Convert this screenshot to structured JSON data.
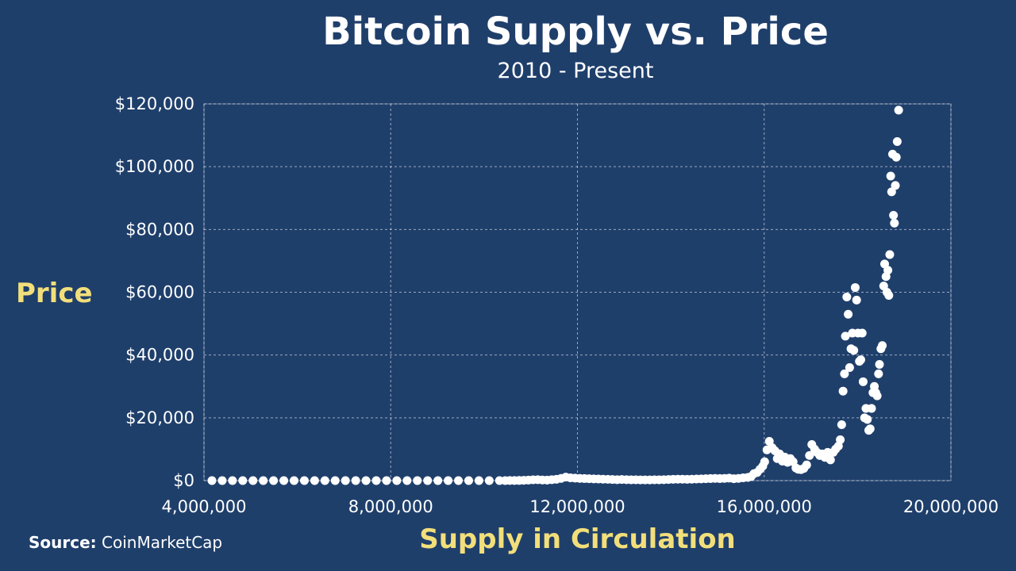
{
  "chart_data": {
    "type": "scatter",
    "title": "Bitcoin Supply vs. Price",
    "subtitle": "2010 - Present",
    "xlabel": "Supply in Circulation",
    "ylabel": "Price",
    "xlim": [
      4000000,
      20000000
    ],
    "ylim": [
      0,
      120000
    ],
    "xticks": [
      4000000,
      8000000,
      12000000,
      16000000,
      20000000
    ],
    "xtick_labels": [
      "4,000,000",
      "8,000,000",
      "12,000,000",
      "16,000,000",
      "20,000,000"
    ],
    "yticks": [
      0,
      20000,
      40000,
      60000,
      80000,
      100000,
      120000
    ],
    "ytick_labels": [
      "$0",
      "$20,000",
      "$40,000",
      "$60,000",
      "$80,000",
      "$100,000",
      "$120,000"
    ],
    "grid": true,
    "point_color": "#ffffff",
    "series": [
      {
        "points": [
          [
            4170000,
            0
          ],
          [
            4390000,
            0
          ],
          [
            4610000,
            0
          ],
          [
            4830000,
            0
          ],
          [
            5050000,
            0
          ],
          [
            5270000,
            0
          ],
          [
            5490000,
            0
          ],
          [
            5710000,
            0
          ],
          [
            5930000,
            0
          ],
          [
            6150000,
            0
          ],
          [
            6370000,
            0
          ],
          [
            6590000,
            0
          ],
          [
            6810000,
            0
          ],
          [
            7030000,
            0
          ],
          [
            7250000,
            0
          ],
          [
            7470000,
            0
          ],
          [
            7690000,
            0
          ],
          [
            7910000,
            0
          ],
          [
            8130000,
            0
          ],
          [
            8350000,
            0
          ],
          [
            8570000,
            0
          ],
          [
            8790000,
            0
          ],
          [
            9010000,
            0
          ],
          [
            9230000,
            0
          ],
          [
            9450000,
            0
          ],
          [
            9670000,
            0
          ],
          [
            9890000,
            0
          ],
          [
            10110000,
            0
          ],
          [
            10330000,
            0
          ],
          [
            10450000,
            10
          ],
          [
            10550000,
            20
          ],
          [
            10650000,
            30
          ],
          [
            10750000,
            50
          ],
          [
            10850000,
            100
          ],
          [
            10950000,
            150
          ],
          [
            11050000,
            250
          ],
          [
            11150000,
            300
          ],
          [
            11250000,
            200
          ],
          [
            11350000,
            150
          ],
          [
            11450000,
            300
          ],
          [
            11550000,
            400
          ],
          [
            11650000,
            700
          ],
          [
            11750000,
            1100
          ],
          [
            11850000,
            900
          ],
          [
            11950000,
            800
          ],
          [
            12050000,
            700
          ],
          [
            12150000,
            650
          ],
          [
            12250000,
            600
          ],
          [
            12350000,
            550
          ],
          [
            12450000,
            500
          ],
          [
            12550000,
            450
          ],
          [
            12650000,
            400
          ],
          [
            12750000,
            350
          ],
          [
            12850000,
            300
          ],
          [
            12950000,
            350
          ],
          [
            13050000,
            300
          ],
          [
            13150000,
            250
          ],
          [
            13250000,
            250
          ],
          [
            13350000,
            230
          ],
          [
            13450000,
            230
          ],
          [
            13550000,
            230
          ],
          [
            13650000,
            250
          ],
          [
            13750000,
            260
          ],
          [
            13850000,
            300
          ],
          [
            13950000,
            350
          ],
          [
            14050000,
            420
          ],
          [
            14150000,
            450
          ],
          [
            14250000,
            430
          ],
          [
            14350000,
            420
          ],
          [
            14450000,
            450
          ],
          [
            14550000,
            500
          ],
          [
            14650000,
            550
          ],
          [
            14750000,
            600
          ],
          [
            14850000,
            650
          ],
          [
            14950000,
            700
          ],
          [
            15050000,
            650
          ],
          [
            15150000,
            700
          ],
          [
            15250000,
            800
          ],
          [
            15350000,
            600
          ],
          [
            15450000,
            700
          ],
          [
            15550000,
            900
          ],
          [
            15650000,
            1000
          ],
          [
            15720000,
            1300
          ],
          [
            15780000,
            2200
          ],
          [
            15850000,
            2600
          ],
          [
            15910000,
            3600
          ],
          [
            15970000,
            4600
          ],
          [
            16010000,
            6000
          ],
          [
            16060000,
            9800
          ],
          [
            16110000,
            12500
          ],
          [
            16170000,
            10500
          ],
          [
            16230000,
            9500
          ],
          [
            16280000,
            7000
          ],
          [
            16330000,
            8500
          ],
          [
            16390000,
            6200
          ],
          [
            16440000,
            7500
          ],
          [
            16500000,
            5800
          ],
          [
            16560000,
            7000
          ],
          [
            16620000,
            6000
          ],
          [
            16680000,
            4000
          ],
          [
            16730000,
            3600
          ],
          [
            16790000,
            3500
          ],
          [
            16850000,
            3900
          ],
          [
            16910000,
            5000
          ],
          [
            16970000,
            8000
          ],
          [
            17020000,
            11500
          ],
          [
            17080000,
            10000
          ],
          [
            17130000,
            9000
          ],
          [
            17190000,
            8000
          ],
          [
            17240000,
            8500
          ],
          [
            17300000,
            7400
          ],
          [
            17360000,
            9000
          ],
          [
            17420000,
            6600
          ],
          [
            17480000,
            9000
          ],
          [
            17530000,
            10000
          ],
          [
            17590000,
            11000
          ],
          [
            17630000,
            13000
          ],
          [
            17660000,
            17800
          ],
          [
            17690000,
            28500
          ],
          [
            17720000,
            34000
          ],
          [
            17740000,
            46000
          ],
          [
            17770000,
            58500
          ],
          [
            17800000,
            53000
          ],
          [
            17830000,
            36000
          ],
          [
            17860000,
            42000
          ],
          [
            17890000,
            47000
          ],
          [
            17920000,
            41500
          ],
          [
            17950000,
            61500
          ],
          [
            17980000,
            57500
          ],
          [
            18010000,
            47000
          ],
          [
            18040000,
            38000
          ],
          [
            18070000,
            38500
          ],
          [
            18100000,
            47000
          ],
          [
            18120000,
            31500
          ],
          [
            18150000,
            20000
          ],
          [
            18180000,
            23000
          ],
          [
            18210000,
            19500
          ],
          [
            18240000,
            16000
          ],
          [
            18270000,
            16500
          ],
          [
            18300000,
            23000
          ],
          [
            18330000,
            28000
          ],
          [
            18360000,
            30000
          ],
          [
            18390000,
            28000
          ],
          [
            18420000,
            27000
          ],
          [
            18450000,
            34000
          ],
          [
            18470000,
            37000
          ],
          [
            18500000,
            42000
          ],
          [
            18530000,
            43000
          ],
          [
            18560000,
            62000
          ],
          [
            18580000,
            69000
          ],
          [
            18610000,
            65000
          ],
          [
            18630000,
            60000
          ],
          [
            18650000,
            67000
          ],
          [
            18670000,
            59000
          ],
          [
            18690000,
            72000
          ],
          [
            18710000,
            97000
          ],
          [
            18730000,
            92000
          ],
          [
            18750000,
            104000
          ],
          [
            18770000,
            84500
          ],
          [
            18790000,
            82000
          ],
          [
            18810000,
            94000
          ],
          [
            18830000,
            103000
          ],
          [
            18850000,
            108000
          ],
          [
            18880000,
            118000
          ]
        ]
      }
    ]
  },
  "footer": {
    "source_label": "Source:",
    "source_value": " CoinMarketCap"
  }
}
